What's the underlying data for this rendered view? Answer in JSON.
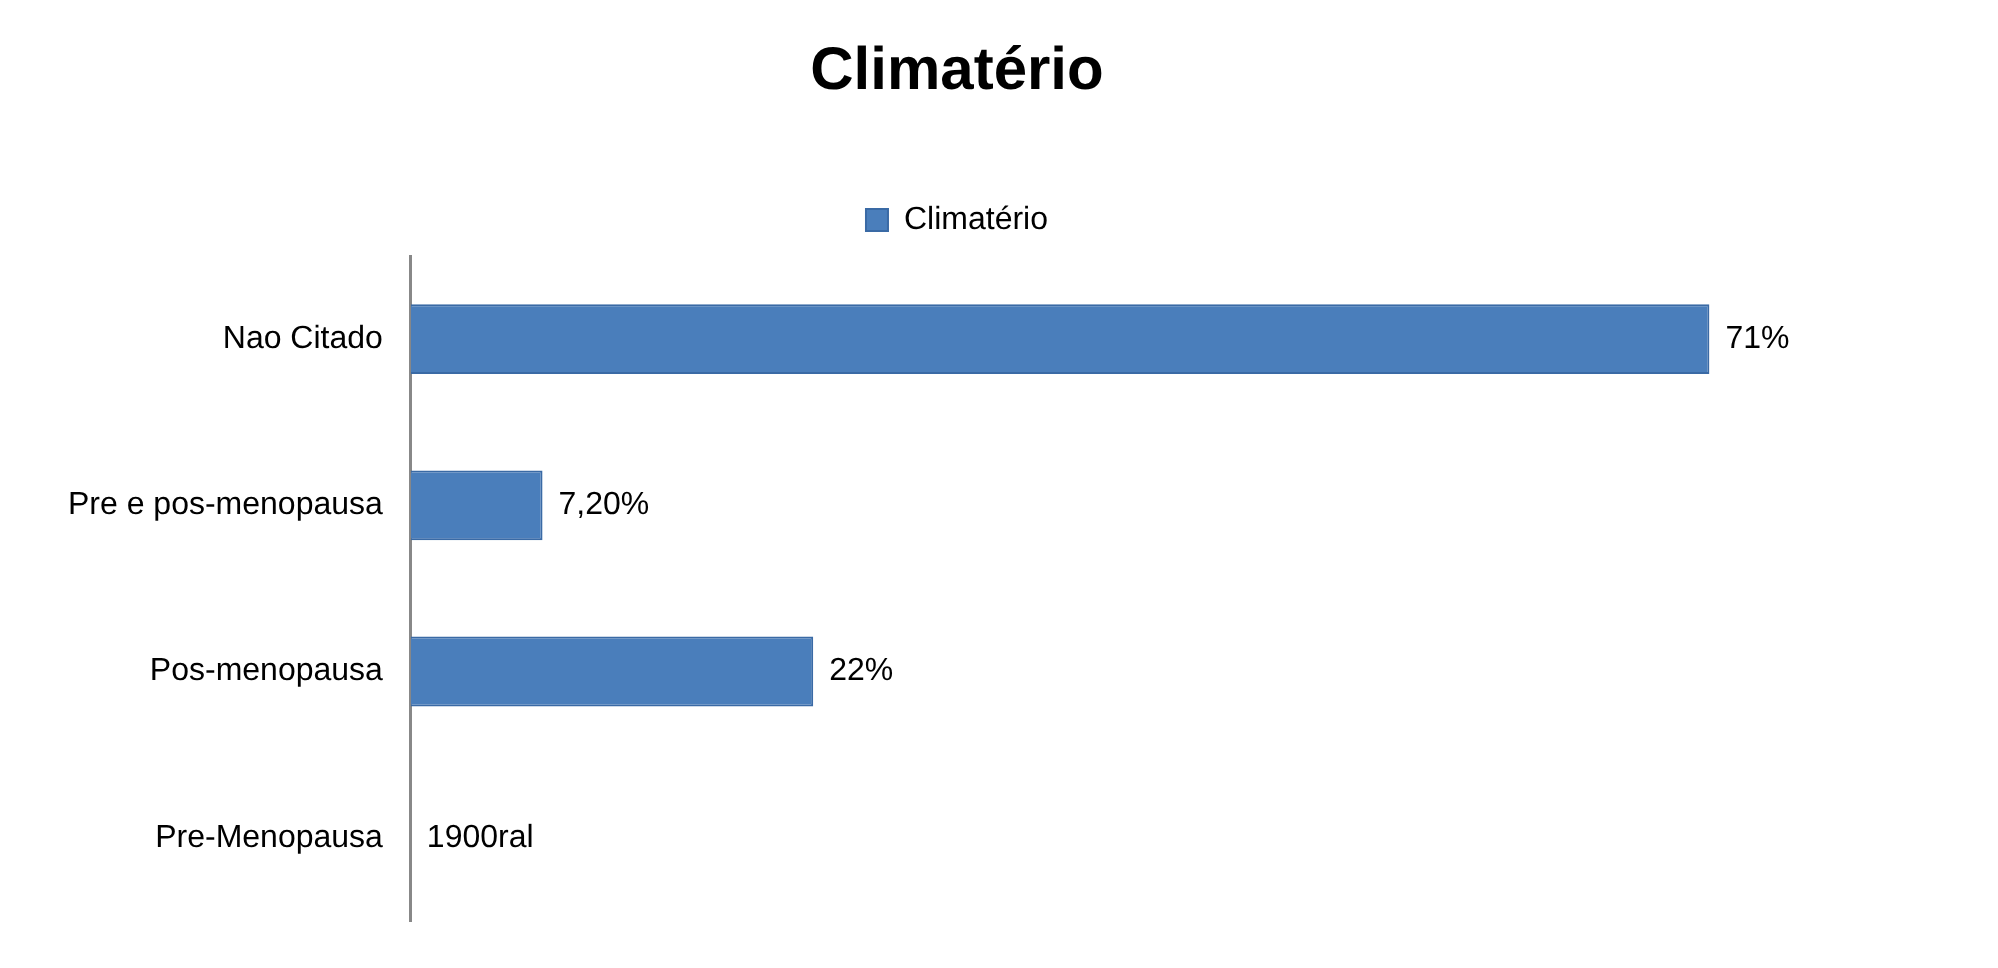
{
  "chart_data": {
    "type": "bar",
    "orientation": "horizontal",
    "title": "Climatério",
    "categories": [
      "Nao Citado",
      "Pre e pos-menopausa",
      "Pos-menopausa",
      "Pre-Menopausa"
    ],
    "series": [
      {
        "name": "Climatério",
        "color": "#4a7ebb",
        "values": [
          71,
          7.2,
          22,
          null
        ],
        "value_labels": [
          "71%",
          "7,20%",
          "22%",
          "1900ral"
        ]
      }
    ],
    "legend": "top",
    "tick_labels": "y"
  }
}
